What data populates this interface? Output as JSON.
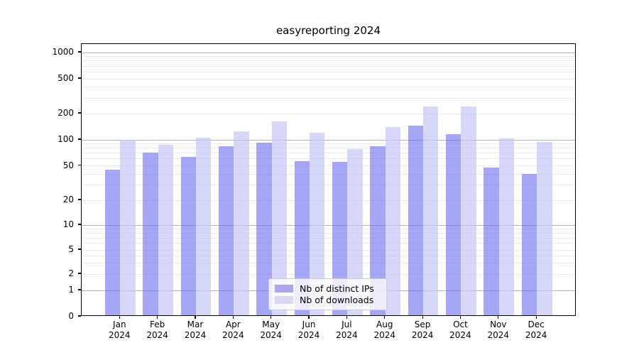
{
  "chart_data": {
    "type": "bar",
    "title": "easyreporting 2024",
    "categories": [
      "Jan",
      "Feb",
      "Mar",
      "Apr",
      "May",
      "Jun",
      "Jul",
      "Aug",
      "Sep",
      "Oct",
      "Nov",
      "Dec"
    ],
    "x_label_year": "2024",
    "series": [
      {
        "name": "Nb of distinct IPs",
        "color": "#a9a9ee",
        "fill_rgba": "rgba(112,112,240,0.62)",
        "values": [
          45,
          70,
          63,
          84,
          91,
          56,
          55,
          84,
          143,
          115,
          47,
          40
        ]
      },
      {
        "name": "Nb of downloads",
        "color": "#d9d9f6",
        "fill_rgba": "rgba(196,196,246,0.68)",
        "values": [
          100,
          87,
          104,
          124,
          160,
          119,
          77,
          138,
          240,
          240,
          103,
          93
        ]
      }
    ],
    "y_axis": {
      "scale": "log-like (linear near zero)",
      "tick_labels": [
        "1000",
        "500",
        "200",
        "100",
        "50",
        "20",
        "10",
        "5",
        "2",
        "1",
        "0"
      ],
      "tick_values": [
        1000,
        500,
        200,
        100,
        50,
        20,
        10,
        5,
        2,
        1,
        0
      ],
      "major_grid_values": [
        1,
        10,
        100,
        1000
      ],
      "minor_grid_values": [
        2,
        3,
        4,
        5,
        6,
        7,
        8,
        9,
        20,
        30,
        40,
        50,
        60,
        70,
        80,
        90,
        200,
        300,
        400,
        500,
        600,
        700,
        800,
        900
      ],
      "ylim": [
        0,
        1585
      ]
    },
    "legend": {
      "position": "inside-bottom-center",
      "entries": [
        "Nb of distinct IPs",
        "Nb of downloads"
      ]
    },
    "grid": true,
    "colors": {
      "major_grid": "#b4b4b4",
      "minor_grid": "#ebebeb",
      "spine": "#000000",
      "text": "#000000"
    }
  }
}
